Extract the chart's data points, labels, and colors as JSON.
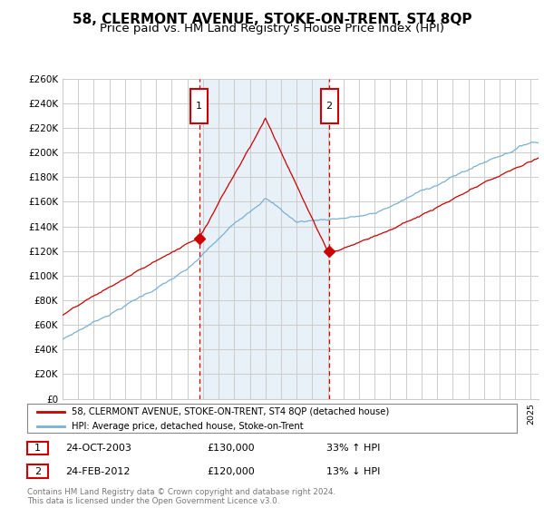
{
  "title": "58, CLERMONT AVENUE, STOKE-ON-TRENT, ST4 8QP",
  "subtitle": "Price paid vs. HM Land Registry's House Price Index (HPI)",
  "ylim": [
    0,
    260000
  ],
  "yticks": [
    0,
    20000,
    40000,
    60000,
    80000,
    100000,
    120000,
    140000,
    160000,
    180000,
    200000,
    220000,
    240000,
    260000
  ],
  "ytick_labels": [
    "£0",
    "£20K",
    "£40K",
    "£60K",
    "£80K",
    "£100K",
    "£120K",
    "£140K",
    "£160K",
    "£180K",
    "£200K",
    "£220K",
    "£240K",
    "£260K"
  ],
  "xlim_start": 1995,
  "xlim_end": 2025.5,
  "sale1_year": 2003.79,
  "sale1_price": 130000,
  "sale1_date": "24-OCT-2003",
  "sale1_pct": "33% ↑ HPI",
  "sale2_year": 2012.12,
  "sale2_price": 120000,
  "sale2_date": "24-FEB-2012",
  "sale2_pct": "13% ↓ HPI",
  "legend_line1": "58, CLERMONT AVENUE, STOKE-ON-TRENT, ST4 8QP (detached house)",
  "legend_line2": "HPI: Average price, detached house, Stoke-on-Trent",
  "footer": "Contains HM Land Registry data © Crown copyright and database right 2024.\nThis data is licensed under the Open Government Licence v3.0.",
  "line_color_red": "#cc0000",
  "line_color_blue": "#7ab0d4",
  "background_color": "#ffffff",
  "grid_color": "#cccccc",
  "shade_color": "#e8f0f8",
  "title_fontsize": 11,
  "subtitle_fontsize": 9.5
}
